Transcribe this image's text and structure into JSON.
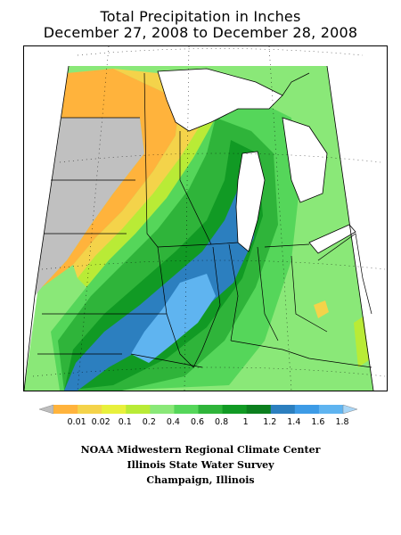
{
  "title": {
    "line1": "Total Precipitation in Inches",
    "line2": "December 27, 2008 to December 28, 2008"
  },
  "legend": {
    "bins": [
      {
        "label": "0.01",
        "color": "#ffb33c"
      },
      {
        "label": "0.02",
        "color": "#f4d34a"
      },
      {
        "label": "0.1",
        "color": "#e8f03c"
      },
      {
        "label": "0.2",
        "color": "#b9eb36"
      },
      {
        "label": "0.4",
        "color": "#8ae878"
      },
      {
        "label": "0.6",
        "color": "#55d65a"
      },
      {
        "label": "0.8",
        "color": "#2fb43a"
      },
      {
        "label": "1",
        "color": "#119a24"
      },
      {
        "label": "1.2",
        "color": "#0c7f1e"
      },
      {
        "label": "1.4",
        "color": "#2c7fbf"
      },
      {
        "label": "1.6",
        "color": "#3d9be6"
      },
      {
        "label": "1.8",
        "color": "#5fb4f0"
      }
    ],
    "low_cap_color": "#bdbdbd",
    "high_cap_color": "#a9d6f6"
  },
  "map_colors": {
    "no_data": "#c0c0c0",
    "orange": "#ffb33c",
    "yellow": "#f4d34a",
    "lime": "#b9eb36",
    "light_green": "#8ae878",
    "green": "#55d65a",
    "mid_green": "#2fb43a",
    "dark_green": "#119a24",
    "blue": "#2c7fbf",
    "light_blue": "#5fb4f0",
    "boundary": "#000000"
  },
  "credits": {
    "line1": "NOAA Midwestern Regional Climate Center",
    "line2": "Illinois State Water Survey",
    "line3": "Champaign, Illinois"
  }
}
